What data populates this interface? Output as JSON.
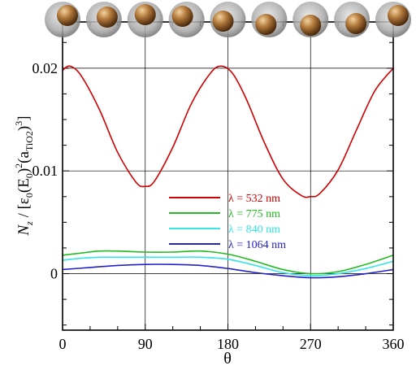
{
  "chart_data": {
    "type": "line",
    "title": "",
    "xlabel": "θ",
    "ylabel_parts": {
      "N": "N",
      "z": "z",
      "mid1": " / [ε",
      "sub0": "0",
      "mid2": "(E",
      "sub0b": "0",
      "mid3": ")",
      "sup2": "2",
      "mid4": "(a",
      "subTiO2": "TiO2",
      "mid5": ")",
      "sup3": "3",
      "end": "]"
    },
    "xlim": [
      0,
      360
    ],
    "ylim": [
      -0.0055,
      0.0245
    ],
    "x_ticks": [
      0,
      90,
      180,
      270,
      360
    ],
    "x_tick_labels": [
      "0",
      "90",
      "180",
      "270",
      "360"
    ],
    "y_ticks": [
      0,
      0.01,
      0.02
    ],
    "y_tick_labels": [
      "0",
      "0.01",
      "0.02"
    ],
    "grid": true,
    "legend_position": "center",
    "series": [
      {
        "name": "λ =  532 nm",
        "color": "#d00000",
        "x": [
          0,
          8,
          20,
          40,
          60,
          80,
          90,
          100,
          120,
          140,
          160,
          172,
          185,
          200,
          220,
          240,
          260,
          270,
          280,
          300,
          320,
          340,
          360
        ],
        "y": [
          0.0198,
          0.0202,
          0.0193,
          0.016,
          0.0118,
          0.0089,
          0.0085,
          0.009,
          0.0123,
          0.0165,
          0.0194,
          0.0202,
          0.0195,
          0.017,
          0.0127,
          0.0092,
          0.0076,
          0.0075,
          0.0078,
          0.0101,
          0.014,
          0.0178,
          0.02
        ]
      },
      {
        "name": "λ = 775 nm",
        "color": "#22bb22",
        "x": [
          0,
          20,
          40,
          60,
          90,
          120,
          150,
          180,
          210,
          240,
          270,
          300,
          330,
          360
        ],
        "y": [
          0.0018,
          0.002,
          0.0022,
          0.0022,
          0.0021,
          0.0021,
          0.0022,
          0.0019,
          0.0012,
          0.0004,
          0.0,
          0.0002,
          0.0009,
          0.0018
        ]
      },
      {
        "name": "λ = 840 nm",
        "color": "#33e5e5",
        "x": [
          0,
          20,
          40,
          60,
          90,
          120,
          150,
          180,
          210,
          240,
          270,
          300,
          330,
          360
        ],
        "y": [
          0.0013,
          0.0015,
          0.0016,
          0.0016,
          0.0016,
          0.0016,
          0.0016,
          0.0014,
          0.0008,
          0.0001,
          -0.0002,
          0.0,
          0.0005,
          0.0012
        ]
      },
      {
        "name": "λ = 1064 nm",
        "color": "#2222cc",
        "x": [
          0,
          30,
          60,
          90,
          120,
          150,
          180,
          210,
          240,
          270,
          300,
          330,
          360
        ],
        "y": [
          0.0004,
          0.0006,
          0.0008,
          0.0009,
          0.0009,
          0.0008,
          0.0005,
          0.0001,
          -0.0002,
          -0.0004,
          -0.0003,
          0.0,
          0.0004
        ]
      }
    ]
  }
}
